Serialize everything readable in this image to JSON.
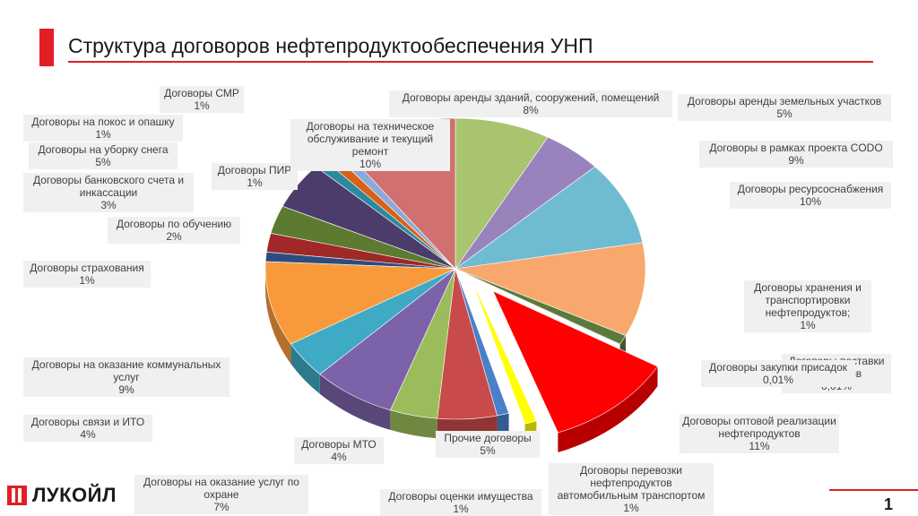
{
  "header": {
    "title": "Структура договоров нефтепродуктообеспечения УНП"
  },
  "footer": {
    "logo_text": "ЛУКОЙЛ",
    "page_number": "1"
  },
  "colors": {
    "accent": "#e31f26"
  },
  "chart_data": {
    "type": "pie",
    "title": "",
    "slices": [
      {
        "name": "Договоры аренды зданий, сооружений, помещений",
        "value": 8,
        "label": "8%",
        "color": "#a8c46e"
      },
      {
        "name": "Договоры аренды земельных участков",
        "value": 5,
        "label": "5%",
        "color": "#9a82bc"
      },
      {
        "name": "Договоры в рамках проекта CODO",
        "value": 9,
        "label": "9%",
        "color": "#6fbcd2"
      },
      {
        "name": "Договоры ресурсоснабжения",
        "value": 10,
        "label": "10%",
        "color": "#f8a86c"
      },
      {
        "name": "Договоры хранения и транспортировки нефтепродуктов;",
        "value": 1,
        "label": "1%",
        "color": "#5a7a3a"
      },
      {
        "name": "Договоры поставки продуктов",
        "value": 0.01,
        "label": "0,01%",
        "color": "#7a2a3a"
      },
      {
        "name": "Договоры закупки присадок",
        "value": 0.01,
        "label": "0,01%",
        "color": "#2a4a7a"
      },
      {
        "name": "Договоры оптовой реализации нефтепродуктов",
        "value": 11,
        "label": "11%",
        "color": "#ff0000",
        "exploded": true
      },
      {
        "name": "Договоры  перевозки нефтепродуктов автомобильным транспортом",
        "value": 1,
        "label": "1%",
        "color": "#ffff00",
        "exploded": true
      },
      {
        "name": "Договоры оценки имущества",
        "value": 1,
        "label": "1%",
        "color": "#4a80c8"
      },
      {
        "name": "Прочие договоры",
        "value": 5,
        "label": "5%",
        "color": "#c84a4a"
      },
      {
        "name": "Договоры  МТО",
        "value": 4,
        "label": "4%",
        "color": "#9cbc5c"
      },
      {
        "name": "Договоры на оказание услуг по охране",
        "value": 7,
        "label": "7%",
        "color": "#7c62a8"
      },
      {
        "name": "Договоры связи и ИТО",
        "value": 4,
        "label": "4%",
        "color": "#3eaac4"
      },
      {
        "name": "Договоры на оказание коммунальных услуг",
        "value": 9,
        "label": "9%",
        "color": "#f89a3c"
      },
      {
        "name": "Договоры страхования",
        "value": 1,
        "label": "1%",
        "color": "#2c4c80"
      },
      {
        "name": "Договоры по обучению",
        "value": 2,
        "label": "2%",
        "color": "#a02828"
      },
      {
        "name": "Договоры банковского счета и инкассации",
        "value": 3,
        "label": "3%",
        "color": "#5c7a30"
      },
      {
        "name": "Договоры на уборку снега",
        "value": 5,
        "label": "5%",
        "color": "#4c3c6c"
      },
      {
        "name": "Договоры ПИР",
        "value": 1,
        "label": "1%",
        "color": "#2c8aa0"
      },
      {
        "name": "Договоры на покос и опашку",
        "value": 1,
        "label": "1%",
        "color": "#d86018"
      },
      {
        "name": "Договоры СМР",
        "value": 1,
        "label": "1%",
        "color": "#8caad8"
      },
      {
        "name": "Договоры на техническое обслуживание и текущий ремонт",
        "value": 10,
        "label": "10%",
        "color": "#d07070"
      }
    ]
  }
}
